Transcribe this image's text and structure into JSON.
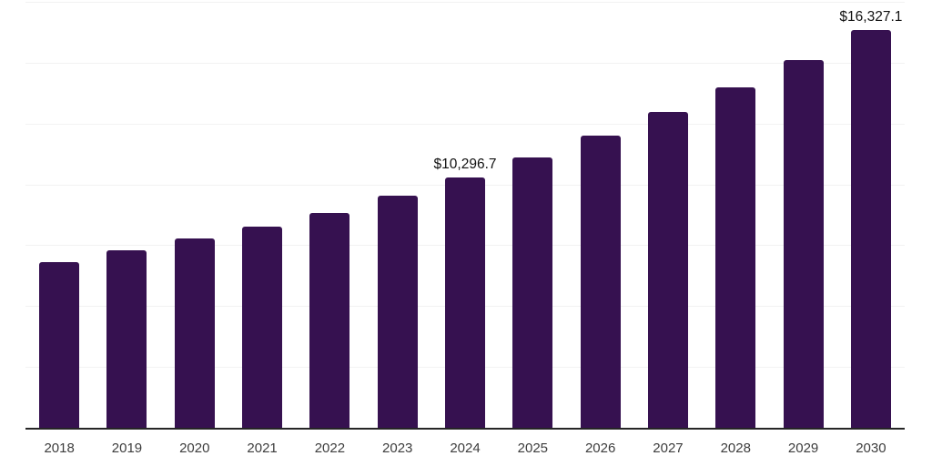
{
  "chart_data": {
    "type": "bar",
    "title": "",
    "xlabel": "",
    "ylabel": "",
    "categories": [
      "2018",
      "2019",
      "2020",
      "2021",
      "2022",
      "2023",
      "2024",
      "2025",
      "2026",
      "2027",
      "2028",
      "2029",
      "2030"
    ],
    "values": [
      6800,
      7290,
      7790,
      8250,
      8820,
      9530,
      10296.7,
      11120,
      12010,
      12970,
      14000,
      15120,
      16327.1
    ],
    "annotations": [
      {
        "category": "2024",
        "index": 6,
        "text": "$10,296.7"
      },
      {
        "category": "2030",
        "index": 12,
        "text": "$16,327.1"
      }
    ],
    "ylim": [
      0,
      17500
    ],
    "gridline_step": 2500,
    "grid": "horizontal",
    "y_tick_labels_visible": false,
    "legend": "none",
    "colors": {
      "bar": "#361150",
      "gridline": "#f2f2f2",
      "axis": "#262626",
      "tick_label": "#3d3d3d",
      "data_label": "#111111",
      "background": "#ffffff"
    }
  }
}
